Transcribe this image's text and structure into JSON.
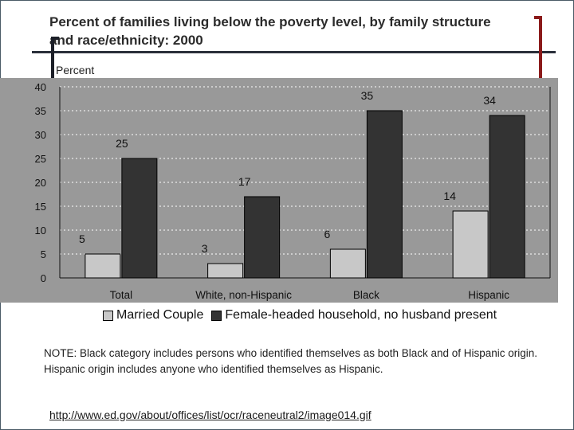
{
  "title": "Percent of families living below the poverty level, by family structure and race/ethnicity: 2000",
  "note": "NOTE: Black category includes persons who identified themselves as both Black and of Hispanic origin. Hispanic origin includes anyone who identified themselves as Hispanic.",
  "source_url": "http://www.ed.gov/about/offices/list/ocr/raceneutral2/image014.gif",
  "colors": {
    "married": "#c8c8c8",
    "female_headed": "#333333",
    "plot_bg": "#999999",
    "page_bg": "#ffffff"
  },
  "chart_data": {
    "type": "bar",
    "title": "Percent of families living below the poverty level, by family structure and race/ethnicity: 2000",
    "ylabel": "Percent",
    "xlabel": "",
    "categories": [
      "Total",
      "White, non-Hispanic",
      "Black",
      "Hispanic"
    ],
    "series": [
      {
        "name": "Married Couple",
        "values": [
          5,
          3,
          6,
          14
        ]
      },
      {
        "name": "Female-headed household, no husband present",
        "values": [
          25,
          17,
          35,
          34
        ]
      }
    ],
    "ylim": [
      0,
      40
    ],
    "yticks": [
      0,
      5,
      10,
      15,
      20,
      25,
      30,
      35,
      40
    ],
    "grid": true,
    "legend": "bottom"
  }
}
